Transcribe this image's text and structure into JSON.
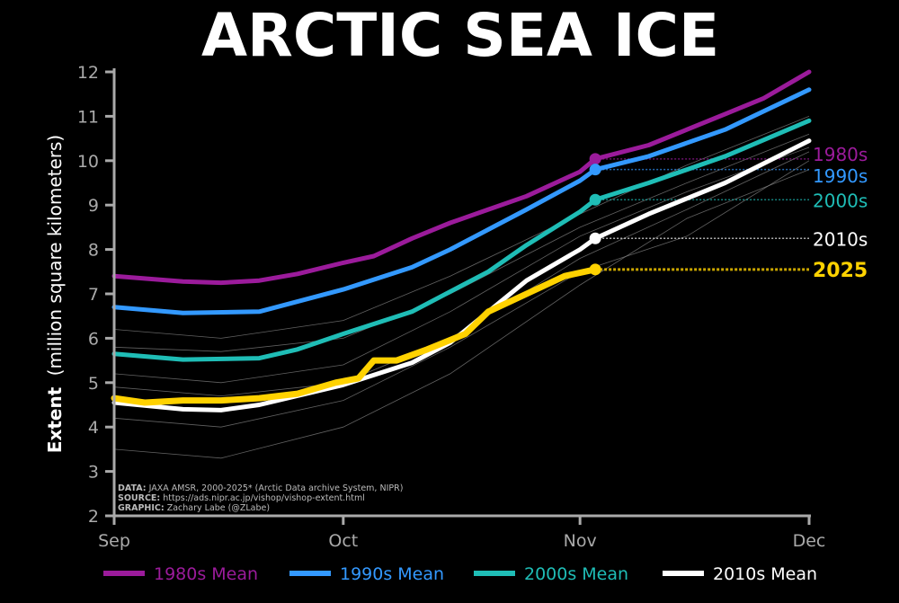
{
  "chart_data": {
    "type": "line",
    "title": "ARCTIC SEA ICE",
    "ylabel_bold": "Extent",
    "ylabel_rest": "(million square kilometers)",
    "ylim": [
      2,
      12
    ],
    "yticks": [
      2,
      3,
      4,
      5,
      6,
      7,
      8,
      9,
      10,
      11,
      12
    ],
    "xlim": [
      "09-01",
      "12-01"
    ],
    "xticks": [
      {
        "date": "09-01",
        "label": "Sep"
      },
      {
        "date": "10-01",
        "label": "Oct"
      },
      {
        "date": "11-01",
        "label": "Nov"
      },
      {
        "date": "12-01",
        "label": "Dec"
      }
    ],
    "grid": false,
    "legend_placement": "bottom",
    "source_note": [
      {
        "key": "DATA:",
        "text": " JAXA AMSR, 2000-2025* (Arctic Data archive System, NIPR)"
      },
      {
        "key": "SOURCE:",
        "text": " https://ads.nipr.ac.jp/vishop/vishop-extent.html"
      },
      {
        "key": "GRAPHIC:",
        "text": " Zachary Labe (@ZLabe)"
      }
    ],
    "individual_years_color": "#8a8a8a",
    "individual_years": [
      [
        [
          "09-01",
          6.2
        ],
        [
          "09-15",
          6.0
        ],
        [
          "10-01",
          6.4
        ],
        [
          "10-15",
          7.4
        ],
        [
          "11-01",
          8.8
        ],
        [
          "11-15",
          9.9
        ],
        [
          "12-01",
          11.0
        ]
      ],
      [
        [
          "09-01",
          5.8
        ],
        [
          "09-15",
          5.7
        ],
        [
          "10-01",
          6.0
        ],
        [
          "10-15",
          7.0
        ],
        [
          "11-01",
          8.5
        ],
        [
          "11-15",
          9.5
        ],
        [
          "12-01",
          10.6
        ]
      ],
      [
        [
          "09-01",
          5.2
        ],
        [
          "09-15",
          5.0
        ],
        [
          "10-01",
          5.4
        ],
        [
          "10-15",
          6.6
        ],
        [
          "11-01",
          8.3
        ],
        [
          "11-15",
          9.3
        ],
        [
          "12-01",
          10.3
        ]
      ],
      [
        [
          "09-01",
          4.9
        ],
        [
          "09-15",
          4.7
        ],
        [
          "10-01",
          5.0
        ],
        [
          "10-15",
          6.0
        ],
        [
          "11-01",
          7.8
        ],
        [
          "11-15",
          8.9
        ],
        [
          "12-01",
          10.2
        ]
      ],
      [
        [
          "09-01",
          4.2
        ],
        [
          "09-15",
          4.0
        ],
        [
          "10-01",
          4.6
        ],
        [
          "10-15",
          5.8
        ],
        [
          "11-01",
          7.5
        ],
        [
          "11-15",
          8.3
        ],
        [
          "12-01",
          10.0
        ]
      ],
      [
        [
          "09-01",
          3.5
        ],
        [
          "09-15",
          3.3
        ],
        [
          "10-01",
          4.0
        ],
        [
          "10-15",
          5.2
        ],
        [
          "11-01",
          7.2
        ],
        [
          "11-15",
          8.7
        ],
        [
          "12-01",
          9.8
        ]
      ]
    ],
    "series": [
      {
        "name": "1980s Mean",
        "label": "1980s",
        "color": "#9b1b9b",
        "end_value": 10.04,
        "points": [
          [
            "09-01",
            7.4
          ],
          [
            "09-10",
            7.28
          ],
          [
            "09-15",
            7.25
          ],
          [
            "09-20",
            7.3
          ],
          [
            "09-25",
            7.45
          ],
          [
            "10-01",
            7.7
          ],
          [
            "10-05",
            7.85
          ],
          [
            "10-10",
            8.25
          ],
          [
            "10-15",
            8.6
          ],
          [
            "10-20",
            8.9
          ],
          [
            "10-25",
            9.2
          ],
          [
            "11-01",
            9.75
          ],
          [
            "11-03",
            10.04
          ],
          [
            "11-10",
            10.35
          ],
          [
            "11-15",
            10.7
          ],
          [
            "11-20",
            11.05
          ],
          [
            "11-25",
            11.4
          ],
          [
            "12-01",
            12.0
          ]
        ]
      },
      {
        "name": "1990s Mean",
        "label": "1990s",
        "color": "#3399ff",
        "end_value": 9.8,
        "points": [
          [
            "09-01",
            6.7
          ],
          [
            "09-10",
            6.57
          ],
          [
            "09-20",
            6.6
          ],
          [
            "10-01",
            7.1
          ],
          [
            "10-10",
            7.6
          ],
          [
            "10-15",
            8.0
          ],
          [
            "10-20",
            8.45
          ],
          [
            "10-25",
            8.9
          ],
          [
            "11-01",
            9.55
          ],
          [
            "11-03",
            9.8
          ],
          [
            "11-10",
            10.1
          ],
          [
            "11-20",
            10.7
          ],
          [
            "12-01",
            11.6
          ]
        ]
      },
      {
        "name": "2000s Mean",
        "label": "2000s",
        "color": "#1fbdb6",
        "end_value": 9.12,
        "points": [
          [
            "09-01",
            5.65
          ],
          [
            "09-10",
            5.52
          ],
          [
            "09-20",
            5.55
          ],
          [
            "09-25",
            5.75
          ],
          [
            "10-01",
            6.1
          ],
          [
            "10-10",
            6.6
          ],
          [
            "10-20",
            7.5
          ],
          [
            "10-25",
            8.1
          ],
          [
            "11-01",
            8.85
          ],
          [
            "11-03",
            9.12
          ],
          [
            "11-10",
            9.5
          ],
          [
            "11-20",
            10.1
          ],
          [
            "12-01",
            10.9
          ]
        ]
      },
      {
        "name": "2010s Mean",
        "label": "2010s",
        "color": "#ffffff",
        "end_value": 8.25,
        "points": [
          [
            "09-01",
            4.55
          ],
          [
            "09-10",
            4.4
          ],
          [
            "09-15",
            4.38
          ],
          [
            "09-20",
            4.5
          ],
          [
            "10-01",
            4.95
          ],
          [
            "10-10",
            5.45
          ],
          [
            "10-15",
            5.9
          ],
          [
            "10-20",
            6.6
          ],
          [
            "10-25",
            7.3
          ],
          [
            "11-01",
            8.0
          ],
          [
            "11-03",
            8.25
          ],
          [
            "11-10",
            8.8
          ],
          [
            "11-20",
            9.5
          ],
          [
            "12-01",
            10.45
          ]
        ]
      },
      {
        "name": "2025",
        "label": "2025",
        "color": "#ffd200",
        "end_value": 7.55,
        "legend": false,
        "points": [
          [
            "09-01",
            4.65
          ],
          [
            "09-05",
            4.55
          ],
          [
            "09-10",
            4.6
          ],
          [
            "09-15",
            4.6
          ],
          [
            "09-20",
            4.65
          ],
          [
            "09-25",
            4.75
          ],
          [
            "09-30",
            5.0
          ],
          [
            "10-03",
            5.1
          ],
          [
            "10-05",
            5.5
          ],
          [
            "10-08",
            5.5
          ],
          [
            "10-12",
            5.75
          ],
          [
            "10-17",
            6.1
          ],
          [
            "10-20",
            6.6
          ],
          [
            "10-25",
            7.0
          ],
          [
            "10-30",
            7.4
          ],
          [
            "11-03",
            7.55
          ]
        ]
      }
    ]
  }
}
